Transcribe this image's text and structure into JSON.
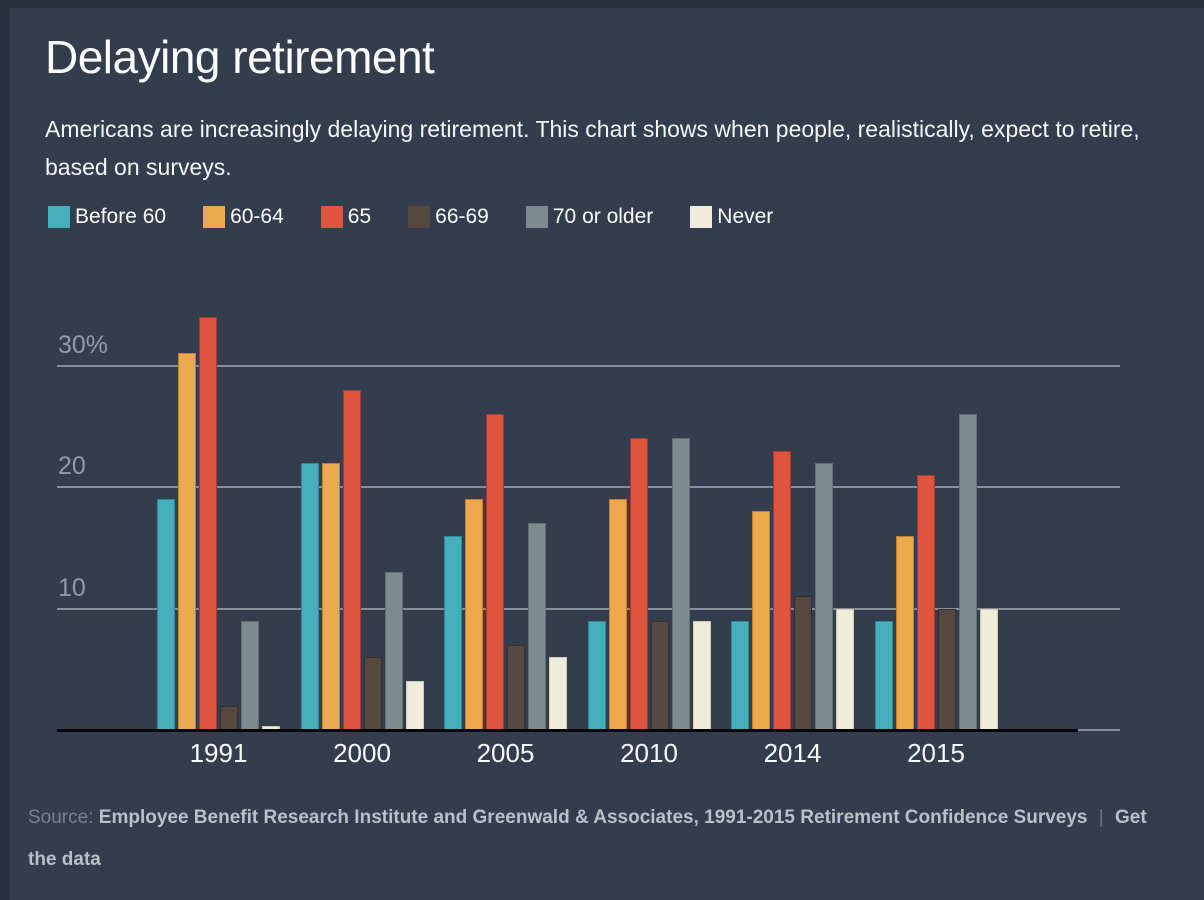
{
  "colors": {
    "background": "#333d4e",
    "frame_edge": "#28303d",
    "gridline": "#868e97",
    "axis_text": "#939ba3",
    "baseline": "#05070a"
  },
  "header": {
    "title": "Delaying retirement",
    "subtitle": "Americans are increasingly delaying retirement. This chart shows when people, realistically, expect to retire, based on surveys."
  },
  "chart_data": {
    "type": "bar",
    "title": "Delaying retirement",
    "categories": [
      "1991",
      "2000",
      "2005",
      "2010",
      "2014",
      "2015"
    ],
    "series": [
      {
        "name": "Before 60",
        "color": "#45b0bb",
        "border": "#2e8a94",
        "values": [
          19,
          22,
          16,
          9,
          9,
          9
        ]
      },
      {
        "name": "60-64",
        "color": "#eda84b",
        "border": "#c07f2a",
        "values": [
          31,
          22,
          19,
          19,
          18,
          16
        ]
      },
      {
        "name": "65",
        "color": "#e0543f",
        "border": "#a93a2a",
        "values": [
          34,
          28,
          26,
          24,
          23,
          21
        ]
      },
      {
        "name": "66-69",
        "color": "#574741",
        "border": "#3a2f2a",
        "values": [
          2,
          6,
          7,
          9,
          11,
          10
        ]
      },
      {
        "name": "70 or older",
        "color": "#7d8b8f",
        "border": "#5f6f74",
        "values": [
          9,
          13,
          17,
          24,
          22,
          26
        ]
      },
      {
        "name": "Never",
        "color": "#f0ecdb",
        "border": "#cfc9ae",
        "values": [
          0.3,
          4,
          6,
          9,
          10,
          10
        ]
      }
    ],
    "yticks": [
      {
        "value": 10,
        "label": "10"
      },
      {
        "value": 20,
        "label": "20"
      },
      {
        "value": 30,
        "label": "30%"
      }
    ],
    "ylim": [
      0,
      35
    ],
    "unit": "percent",
    "grid": "horizontal",
    "legend_position": "top",
    "xlabel": "",
    "ylabel": ""
  },
  "footer": {
    "source_label": "Source:",
    "source_text": "Employee Benefit Research Institute and Greenwald & Associates, 1991-2015 Retirement Confidence Surveys",
    "divider": "|",
    "link_label": "Get the data"
  }
}
